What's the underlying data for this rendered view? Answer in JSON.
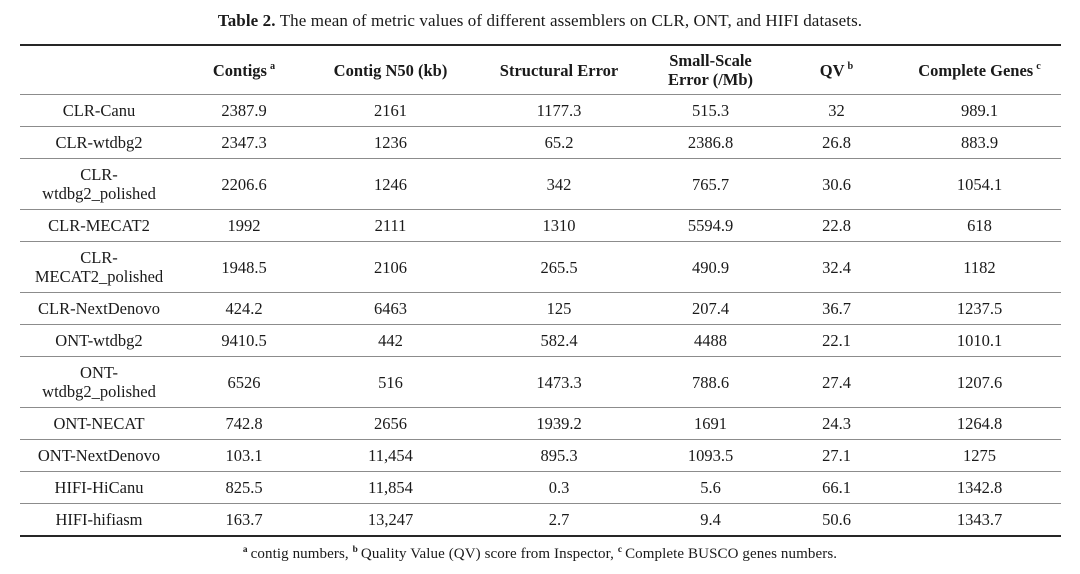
{
  "title": {
    "label": "Table 2.",
    "text": "The mean of metric values of different assemblers on CLR, ONT, and HIFI datasets."
  },
  "table": {
    "column_keys": [
      "contigs",
      "contig-n50",
      "structural-error",
      "small-scale-error",
      "qv",
      "complete-genes"
    ],
    "columns": [
      {
        "text": "",
        "sup": ""
      },
      {
        "text": "Contigs",
        "sup": "a"
      },
      {
        "text": "Contig N50 (kb)",
        "sup": ""
      },
      {
        "text": "Structural Error",
        "sup": ""
      },
      {
        "text": "Small-Scale\nError (/Mb)",
        "sup": ""
      },
      {
        "text": "QV",
        "sup": "b"
      },
      {
        "text": "Complete Genes",
        "sup": "c"
      }
    ],
    "rows": [
      {
        "label": "CLR-Canu",
        "values": [
          "2387.9",
          "2161",
          "1177.3",
          "515.3",
          "32",
          "989.1"
        ]
      },
      {
        "label": "CLR-wtdbg2",
        "values": [
          "2347.3",
          "1236",
          "65.2",
          "2386.8",
          "26.8",
          "883.9"
        ]
      },
      {
        "label": "CLR-\nwtdbg2_polished",
        "values": [
          "2206.6",
          "1246",
          "342",
          "765.7",
          "30.6",
          "1054.1"
        ]
      },
      {
        "label": "CLR-MECAT2",
        "values": [
          "1992",
          "2111",
          "1310",
          "5594.9",
          "22.8",
          "618"
        ]
      },
      {
        "label": "CLR-\nMECAT2_polished",
        "values": [
          "1948.5",
          "2106",
          "265.5",
          "490.9",
          "32.4",
          "1182"
        ]
      },
      {
        "label": "CLR-NextDenovo",
        "values": [
          "424.2",
          "6463",
          "125",
          "207.4",
          "36.7",
          "1237.5"
        ]
      },
      {
        "label": "ONT-wtdbg2",
        "values": [
          "9410.5",
          "442",
          "582.4",
          "4488",
          "22.1",
          "1010.1"
        ]
      },
      {
        "label": "ONT-\nwtdbg2_polished",
        "values": [
          "6526",
          "516",
          "1473.3",
          "788.6",
          "27.4",
          "1207.6"
        ]
      },
      {
        "label": "ONT-NECAT",
        "values": [
          "742.8",
          "2656",
          "1939.2",
          "1691",
          "24.3",
          "1264.8"
        ]
      },
      {
        "label": "ONT-NextDenovo",
        "values": [
          "103.1",
          "11,454",
          "895.3",
          "1093.5",
          "27.1",
          "1275"
        ]
      },
      {
        "label": "HIFI-HiCanu",
        "values": [
          "825.5",
          "11,854",
          "0.3",
          "5.6",
          "66.1",
          "1342.8"
        ]
      },
      {
        "label": "HIFI-hifiasm",
        "values": [
          "163.7",
          "13,247",
          "2.7",
          "9.4",
          "50.6",
          "1343.7"
        ]
      }
    ]
  },
  "footnote": {
    "segments": [
      {
        "sup": "a",
        "text": "contig numbers, "
      },
      {
        "sup": "b",
        "text": "Quality Value (QV) score from Inspector, "
      },
      {
        "sup": "c",
        "text": "Complete BUSCO genes numbers."
      }
    ]
  },
  "colors": {
    "background": "#ffffff",
    "text": "#1a1a1a",
    "rule_heavy": "#262626",
    "rule_light": "#8c8c8c"
  }
}
